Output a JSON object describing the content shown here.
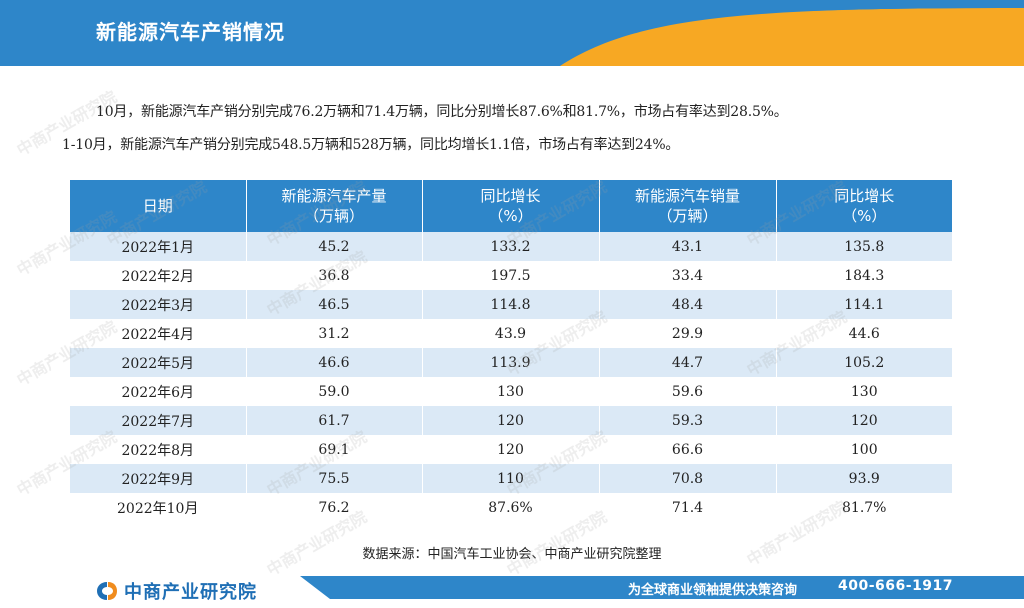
{
  "header": {
    "title": "新能源汽车产销情况"
  },
  "summary": {
    "line1": "10月，新能源汽车产销分别完成76.2万辆和71.4万辆，同比分别增长87.6%和81.7%，市场占有率达到28.5%。",
    "line2": "1-10月，新能源汽车产销分别完成548.5万辆和528万辆，同比均增长1.1倍，市场占有率达到24%。"
  },
  "table": {
    "headers": [
      {
        "line1": "日期",
        "line2": ""
      },
      {
        "line1": "新能源汽车产量",
        "line2": "（万辆）"
      },
      {
        "line1": "同比增长",
        "line2": "（%）"
      },
      {
        "line1": "新能源汽车销量",
        "line2": "（万辆）"
      },
      {
        "line1": "同比增长",
        "line2": "（%）"
      }
    ],
    "rows": [
      [
        "2022年1月",
        "45.2",
        "133.2",
        "43.1",
        "135.8"
      ],
      [
        "2022年2月",
        "36.8",
        "197.5",
        "33.4",
        "184.3"
      ],
      [
        "2022年3月",
        "46.5",
        "114.8",
        "48.4",
        "114.1"
      ],
      [
        "2022年4月",
        "31.2",
        "43.9",
        "29.9",
        "44.6"
      ],
      [
        "2022年5月",
        "46.6",
        "113.9",
        "44.7",
        "105.2"
      ],
      [
        "2022年6月",
        "59.0",
        "130",
        "59.6",
        "130"
      ],
      [
        "2022年7月",
        "61.7",
        "120",
        "59.3",
        "120"
      ],
      [
        "2022年8月",
        "69.1",
        "120",
        "66.6",
        "100"
      ],
      [
        "2022年9月",
        "75.5",
        "110",
        "70.8",
        "93.9"
      ],
      [
        "2022年10月",
        "76.2",
        "87.6%",
        "71.4",
        "81.7%"
      ]
    ]
  },
  "source": "数据来源：中国汽车工业协会、中商产业研究院整理",
  "footer": {
    "logo_text": "中商产业研究院",
    "slogan": "为全球商业领袖提供决策咨询",
    "phone": "400-666-1917"
  },
  "watermark": {
    "text": "中商产业研究院"
  },
  "colors": {
    "header_blue": "#2e86c9",
    "header_orange": "#f7a823",
    "table_header": "#2e86c9",
    "row_stripe": "#dbe9f6",
    "logo_blue": "#1f6fb5",
    "logo_orange": "#f08c1e"
  }
}
